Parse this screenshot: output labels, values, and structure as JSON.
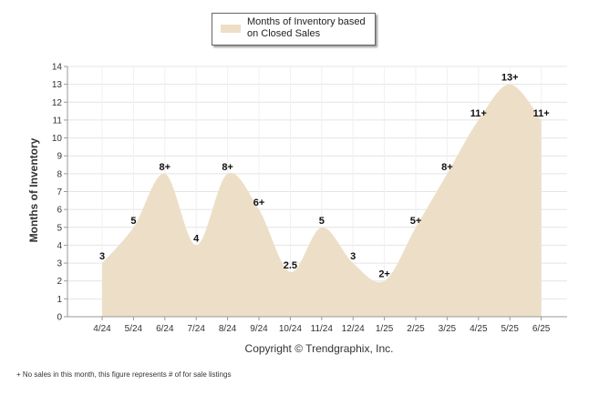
{
  "chart_data": {
    "type": "area",
    "ylabel": "Months of Inventory",
    "ylim": [
      0,
      14
    ],
    "yticks": [
      0,
      1,
      2,
      3,
      4,
      5,
      6,
      7,
      8,
      9,
      10,
      11,
      12,
      13,
      14
    ],
    "categories": [
      "4/24",
      "5/24",
      "6/24",
      "7/24",
      "8/24",
      "9/24",
      "10/24",
      "11/24",
      "12/24",
      "1/25",
      "2/25",
      "3/25",
      "4/25",
      "5/25",
      "6/25"
    ],
    "series": [
      {
        "name": "Months of Inventory based on Closed Sales",
        "values": [
          3,
          5,
          8,
          4,
          8,
          6,
          2.5,
          5,
          3,
          2,
          5,
          8,
          11,
          13,
          11
        ],
        "labels": [
          "3",
          "5",
          "8+",
          "4",
          "8+",
          "6+",
          "2.5",
          "5",
          "3",
          "2+",
          "5+",
          "8+",
          "11+",
          "13+",
          "11+"
        ]
      }
    ],
    "grid": true,
    "legend_position": "top-center",
    "colors": {
      "fill": "#eddfc7",
      "grid": "#e4e4e4",
      "axis": "#999999"
    }
  },
  "legend": {
    "line1": "Months of Inventory based",
    "line2": "on Closed Sales"
  },
  "copyright": "Copyright © Trendgraphix, Inc.",
  "footnote": "+ No sales in this month, this figure represents # of for sale listings"
}
